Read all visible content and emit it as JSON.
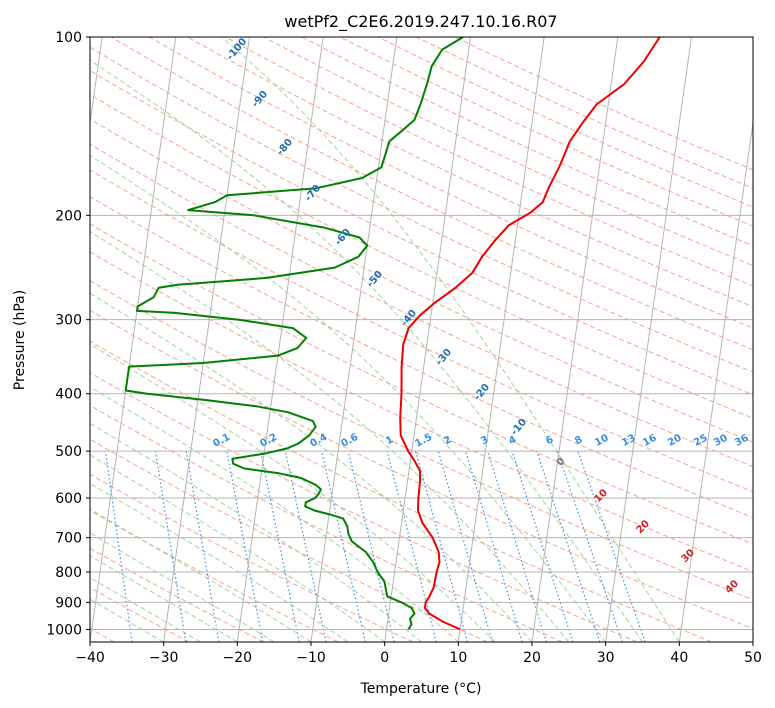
{
  "chart_data": {
    "type": "skew-t",
    "title": "wetPf2_C2E6.2019.247.10.16.R07",
    "xlabel": "Temperature (°C)",
    "ylabel": "Pressure (hPa)",
    "xlim": [
      -40,
      50
    ],
    "ylim": [
      1050,
      100
    ],
    "y_scale": "log",
    "x_ticks": [
      "−40",
      "−30",
      "−20",
      "−10",
      "0",
      "10",
      "20",
      "30",
      "40",
      "50"
    ],
    "y_ticks": [
      "100",
      "200",
      "300",
      "400",
      "500",
      "600",
      "700",
      "800",
      "900",
      "1000"
    ],
    "grid": true,
    "colors": {
      "temperature": "#ee0000",
      "dewpoint": "#008000",
      "isotherm": "#b4b4b4",
      "dry_adiabat": "#f5a58c",
      "moist_adiabat": "#8cc88c",
      "mixing_ratio": "#3a8fe0",
      "theta_e_label": "#1f6db5",
      "cape_label": "#cc2222",
      "axis": "#000000"
    },
    "series": [
      {
        "name": "temperature",
        "points": [
          {
            "p": 1000,
            "t": 10.0
          },
          {
            "p": 970,
            "t": 7.5
          },
          {
            "p": 940,
            "t": 5.5
          },
          {
            "p": 920,
            "t": 4.8
          },
          {
            "p": 900,
            "t": 4.8
          },
          {
            "p": 880,
            "t": 5.2
          },
          {
            "p": 850,
            "t": 5.6
          },
          {
            "p": 800,
            "t": 5.7
          },
          {
            "p": 770,
            "t": 5.9
          },
          {
            "p": 740,
            "t": 5.6
          },
          {
            "p": 700,
            "t": 4.5
          },
          {
            "p": 660,
            "t": 2.8
          },
          {
            "p": 630,
            "t": 2.0
          },
          {
            "p": 600,
            "t": 1.8
          },
          {
            "p": 560,
            "t": 1.7
          },
          {
            "p": 540,
            "t": 1.5
          },
          {
            "p": 520,
            "t": 0.6
          },
          {
            "p": 500,
            "t": -0.5
          },
          {
            "p": 470,
            "t": -1.8
          },
          {
            "p": 440,
            "t": -2.2
          },
          {
            "p": 400,
            "t": -2.5
          },
          {
            "p": 360,
            "t": -3.0
          },
          {
            "p": 330,
            "t": -3.2
          },
          {
            "p": 310,
            "t": -2.8
          },
          {
            "p": 295,
            "t": -1.5
          },
          {
            "p": 280,
            "t": 0.4
          },
          {
            "p": 265,
            "t": 2.8
          },
          {
            "p": 250,
            "t": 4.8
          },
          {
            "p": 235,
            "t": 5.8
          },
          {
            "p": 220,
            "t": 7.3
          },
          {
            "p": 208,
            "t": 8.8
          },
          {
            "p": 198,
            "t": 11.5
          },
          {
            "p": 190,
            "t": 13.0
          },
          {
            "p": 180,
            "t": 13.5
          },
          {
            "p": 165,
            "t": 14.6
          },
          {
            "p": 150,
            "t": 15.5
          },
          {
            "p": 140,
            "t": 16.8
          },
          {
            "p": 130,
            "t": 18.4
          },
          {
            "p": 120,
            "t": 21.8
          },
          {
            "p": 110,
            "t": 24.0
          },
          {
            "p": 100,
            "t": 25.7
          }
        ]
      },
      {
        "name": "dewpoint",
        "points": [
          {
            "p": 1000,
            "t": 3.0
          },
          {
            "p": 980,
            "t": 3.3
          },
          {
            "p": 960,
            "t": 3.0
          },
          {
            "p": 940,
            "t": 3.5
          },
          {
            "p": 920,
            "t": 3.0
          },
          {
            "p": 900,
            "t": 1.5
          },
          {
            "p": 880,
            "t": -0.5
          },
          {
            "p": 860,
            "t": -0.8
          },
          {
            "p": 830,
            "t": -1.2
          },
          {
            "p": 800,
            "t": -2.3
          },
          {
            "p": 770,
            "t": -3.1
          },
          {
            "p": 740,
            "t": -4.3
          },
          {
            "p": 710,
            "t": -6.4
          },
          {
            "p": 690,
            "t": -7.0
          },
          {
            "p": 670,
            "t": -7.3
          },
          {
            "p": 650,
            "t": -8.0
          },
          {
            "p": 640,
            "t": -9.8
          },
          {
            "p": 630,
            "t": -12.0
          },
          {
            "p": 620,
            "t": -13.4
          },
          {
            "p": 610,
            "t": -13.4
          },
          {
            "p": 600,
            "t": -12.2
          },
          {
            "p": 590,
            "t": -11.8
          },
          {
            "p": 580,
            "t": -11.6
          },
          {
            "p": 570,
            "t": -12.4
          },
          {
            "p": 555,
            "t": -14.5
          },
          {
            "p": 545,
            "t": -17.6
          },
          {
            "p": 535,
            "t": -22.4
          },
          {
            "p": 525,
            "t": -24.0
          },
          {
            "p": 515,
            "t": -24.2
          },
          {
            "p": 505,
            "t": -20.0
          },
          {
            "p": 495,
            "t": -17.0
          },
          {
            "p": 485,
            "t": -15.5
          },
          {
            "p": 470,
            "t": -14.2
          },
          {
            "p": 455,
            "t": -13.5
          },
          {
            "p": 445,
            "t": -14.0
          },
          {
            "p": 430,
            "t": -17.5
          },
          {
            "p": 420,
            "t": -22.0
          },
          {
            "p": 410,
            "t": -29.0
          },
          {
            "p": 400,
            "t": -37.0
          },
          {
            "p": 395,
            "t": -40.0
          },
          {
            "p": 360,
            "t": -40.0
          },
          {
            "p": 355,
            "t": -30.0
          },
          {
            "p": 345,
            "t": -20.0
          },
          {
            "p": 335,
            "t": -17.5
          },
          {
            "p": 322,
            "t": -16.5
          },
          {
            "p": 310,
            "t": -18.5
          },
          {
            "p": 300,
            "t": -26.0
          },
          {
            "p": 292,
            "t": -35.0
          },
          {
            "p": 290,
            "t": -40.0
          },
          {
            "p": 285,
            "t": -40.0
          },
          {
            "p": 275,
            "t": -38.0
          },
          {
            "p": 265,
            "t": -37.5
          },
          {
            "p": 262,
            "t": -35.0
          },
          {
            "p": 255,
            "t": -23.0
          },
          {
            "p": 245,
            "t": -14.0
          },
          {
            "p": 235,
            "t": -11.0
          },
          {
            "p": 225,
            "t": -10.0
          },
          {
            "p": 218,
            "t": -11.2
          },
          {
            "p": 210,
            "t": -16.0
          },
          {
            "p": 200,
            "t": -26.0
          },
          {
            "p": 196,
            "t": -35.0
          },
          {
            "p": 190,
            "t": -31.5
          },
          {
            "p": 185,
            "t": -30.0
          },
          {
            "p": 180,
            "t": -18.0
          },
          {
            "p": 173,
            "t": -12.0
          },
          {
            "p": 166,
            "t": -9.6
          },
          {
            "p": 158,
            "t": -9.3
          },
          {
            "p": 150,
            "t": -9.0
          },
          {
            "p": 144,
            "t": -7.5
          },
          {
            "p": 138,
            "t": -6.0
          },
          {
            "p": 130,
            "t": -5.5
          },
          {
            "p": 120,
            "t": -5.0
          },
          {
            "p": 112,
            "t": -4.7
          },
          {
            "p": 105,
            "t": -3.6
          },
          {
            "p": 100,
            "t": -1.0
          }
        ]
      }
    ],
    "theta_e_labels": [
      "-100",
      "-90",
      "-80",
      "-70",
      "-60",
      "-50",
      "-40",
      "-30",
      "-20",
      "-10"
    ],
    "mixing_ratio_labels": [
      "0.1",
      "0.2",
      "0.4",
      "0.6",
      "1",
      "1.5",
      "2",
      "3",
      "4",
      "6",
      "8",
      "10",
      "13",
      "16",
      "20",
      "25",
      "30",
      "36"
    ],
    "mixing_ratio_values": [
      0.1,
      0.2,
      0.4,
      0.6,
      1,
      1.5,
      2,
      3,
      4,
      6,
      8,
      10,
      13,
      16,
      20,
      25,
      30,
      36
    ],
    "cape_labels": [
      "0",
      "10",
      "20",
      "30",
      "40"
    ]
  }
}
